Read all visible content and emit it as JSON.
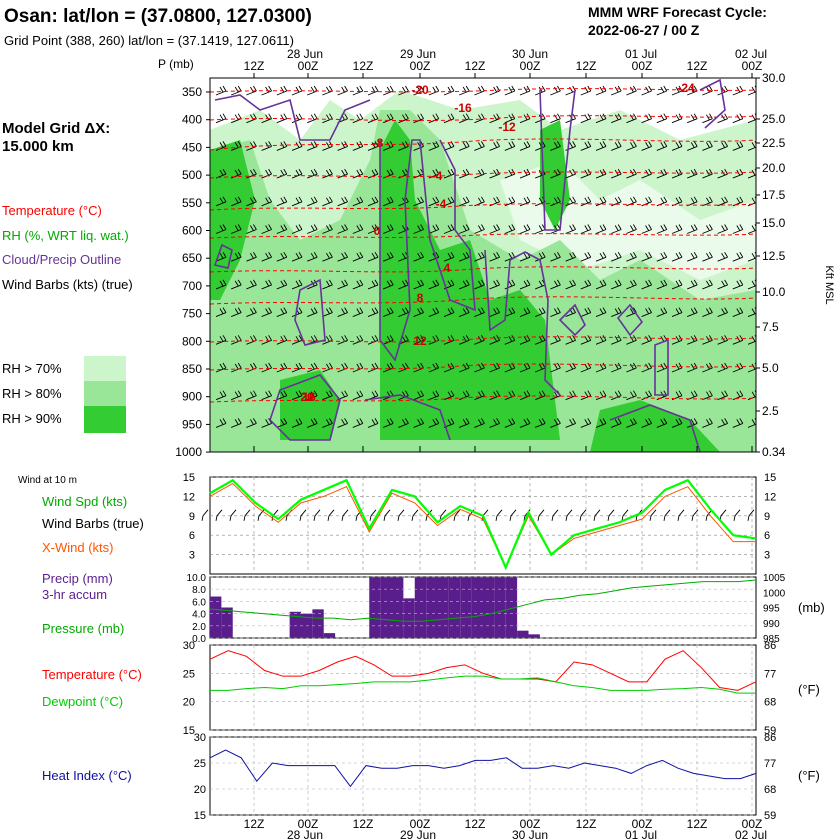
{
  "header": {
    "station": "Osan:  lat/lon = (37.0800, 127.0300)",
    "grid_point": "Grid Point (388, 260) lat/lon = (37.1419, 127.0611)",
    "cycle_line1": "MMM WRF Forecast Cycle:",
    "cycle_line2": "2022-06-27 / 00  Z",
    "model_grid_line1": "Model Grid ΔX:",
    "model_grid_line2": " 15.000 km"
  },
  "time_axis": {
    "hours": [
      "12Z",
      "00Z",
      "12Z",
      "00Z",
      "12Z",
      "00Z",
      "12Z",
      "00Z",
      "12Z",
      "00Z"
    ],
    "days": [
      "28 Jun",
      "29 Jun",
      "30 Jun",
      "01 Jul",
      "02 Jul"
    ]
  },
  "colors": {
    "temperature": "#ff0000",
    "rh": "#00aa00",
    "cloud": "#663399",
    "precip": "#5a1e8c",
    "dewpoint": "#00cc00",
    "heat_index": "#1010a0",
    "xwind": "#ff5500",
    "rh70": "#ccf5cc",
    "rh80": "#99e699",
    "rh90": "#33cc33"
  },
  "legend": {
    "temperature": "Temperature (°C)",
    "rh": "RH (%, WRT liq. wat.)",
    "cloud": "Cloud/Precip Outline",
    "wind_barbs": "Wind Barbs (kts) (true)",
    "rh70": "RH > 70%",
    "rh80": "RH > 80%",
    "rh90": "RH > 90%"
  },
  "chart_data": [
    {
      "type": "heatmap",
      "title": "Vertical cross-section",
      "ylabel_left": "P (mb)",
      "ylabel_right": "Kft MSL",
      "pressure_ticks": [
        "350",
        "400",
        "450",
        "500",
        "550",
        "600",
        "650",
        "700",
        "750",
        "800",
        "850",
        "900",
        "950",
        "1000"
      ],
      "height_ticks": [
        "30.0",
        "25.0",
        "22.5",
        "20.0",
        "17.5",
        "15.0",
        "12.5",
        "10.0",
        "7.5",
        "5.0",
        "2.5",
        "0.34"
      ],
      "temperature_labels": [
        "-20",
        "-16",
        "-12",
        "-8",
        "-4",
        "-4",
        "0",
        "4",
        "8",
        "12",
        "16",
        "20",
        "-24"
      ]
    },
    {
      "type": "line",
      "title": "Wind at 10 m",
      "ylim": [
        0,
        15
      ],
      "yticks": [
        "3",
        "6",
        "9",
        "12",
        "15"
      ],
      "series": [
        {
          "name": "Wind Spd (kts)",
          "values": [
            12.5,
            14.5,
            11,
            8.5,
            11.5,
            13,
            14.5,
            7,
            13,
            12,
            8,
            10.5,
            9,
            1,
            9.5,
            3,
            6,
            7,
            8,
            9.5,
            13,
            14.5,
            10,
            6,
            5.5
          ]
        },
        {
          "name": "X-Wind (kts)",
          "values": [
            12,
            14,
            10.5,
            8,
            11,
            12,
            13.5,
            6.5,
            12.5,
            11,
            7.5,
            10,
            8.5,
            1,
            9,
            3,
            5.5,
            6.5,
            7.5,
            8.5,
            12,
            13.5,
            9,
            5,
            5
          ]
        }
      ],
      "labels": {
        "wind_spd": "Wind Spd (kts)",
        "wind_barbs": "Wind Barbs (true)",
        "xwind": "X-Wind (kts)",
        "panel_title": "Wind at 10 m"
      }
    },
    {
      "type": "bar",
      "title": "Precip / Pressure",
      "ylim": [
        0,
        10
      ],
      "yticks": [
        "0.0",
        "2.0",
        "4.0",
        "6.0",
        "8.0",
        "10.0"
      ],
      "y2ticks": [
        "985",
        "990",
        "995",
        "1000",
        "1005"
      ],
      "y2label": "(mb)",
      "precip_values": [
        6.8,
        5,
        0,
        0,
        0,
        0,
        0,
        4.3,
        4,
        4.7,
        0.8,
        0,
        0,
        0,
        10,
        10,
        10,
        6.5,
        10,
        10,
        10,
        10,
        10,
        10,
        10,
        10,
        10,
        1.2,
        0.6,
        0,
        0,
        0,
        0,
        0,
        0,
        0,
        0,
        0,
        0,
        0,
        0,
        0,
        0,
        0,
        0,
        0,
        0,
        0
      ],
      "pressure_values": [
        994.5,
        994,
        993.5,
        993,
        992.5,
        992,
        991.5,
        991.5,
        991,
        991.5,
        991,
        990.5,
        990.5,
        991,
        991.5,
        992,
        993,
        994.5,
        996,
        997.5,
        998,
        999,
        999.5,
        1000.5,
        1001.5,
        1002,
        1002.5,
        1003,
        1003.5,
        1003.5,
        1003.5,
        1004
      ],
      "labels": {
        "precip": "Precip (mm)",
        "accum": "3-hr accum",
        "pressure": "Pressure (mb)"
      }
    },
    {
      "type": "line",
      "title": "Temperature / Dewpoint",
      "ylim": [
        15,
        30
      ],
      "yticks": [
        "15",
        "20",
        "25",
        "30"
      ],
      "y2ticks": [
        "59",
        "68",
        "77",
        "86"
      ],
      "y2label": "(°F)",
      "series": [
        {
          "name": "Temperature (°C)",
          "values": [
            27.5,
            29,
            28,
            25.5,
            24.5,
            24.5,
            25.5,
            27,
            28,
            26.5,
            24.5,
            24.5,
            25,
            26,
            26.5,
            25,
            24,
            24,
            24,
            23.5,
            27,
            26.5,
            25,
            23.5,
            23.5,
            27.5,
            29,
            26,
            22.5,
            22,
            23.5
          ]
        },
        {
          "name": "Dewpoint (°C)",
          "values": [
            22,
            22,
            22.3,
            22.5,
            22.3,
            22.8,
            22.8,
            23,
            23.2,
            23.5,
            23.5,
            23.5,
            23.8,
            24.2,
            24.5,
            24.5,
            24,
            24,
            24.2,
            23.5,
            22.8,
            22.5,
            22,
            22,
            22,
            22.2,
            22.3,
            22.5,
            22.2,
            21.5,
            21.5
          ]
        }
      ],
      "labels": {
        "temperature": "Temperature (°C)",
        "dewpoint": "Dewpoint (°C)"
      }
    },
    {
      "type": "line",
      "title": "Heat Index",
      "ylim": [
        15,
        30
      ],
      "yticks": [
        "15",
        "20",
        "25",
        "30"
      ],
      "y2ticks": [
        "59",
        "68",
        "77",
        "86"
      ],
      "y2label": "(°F)",
      "series": [
        {
          "name": "Heat Index (°C)",
          "values": [
            26,
            27.5,
            26,
            21.5,
            25,
            24.5,
            24.5,
            24.5,
            24.5,
            20.5,
            24.5,
            24,
            24,
            24.5,
            24.5,
            24,
            24.5,
            25.5,
            25.5,
            26,
            24,
            24,
            24.5,
            24,
            25,
            24.5,
            24,
            23,
            24.5,
            25.5,
            24,
            23,
            22.5,
            22,
            22,
            23
          ]
        }
      ],
      "labels": {
        "heat_index": "Heat Index (°C)"
      }
    }
  ]
}
